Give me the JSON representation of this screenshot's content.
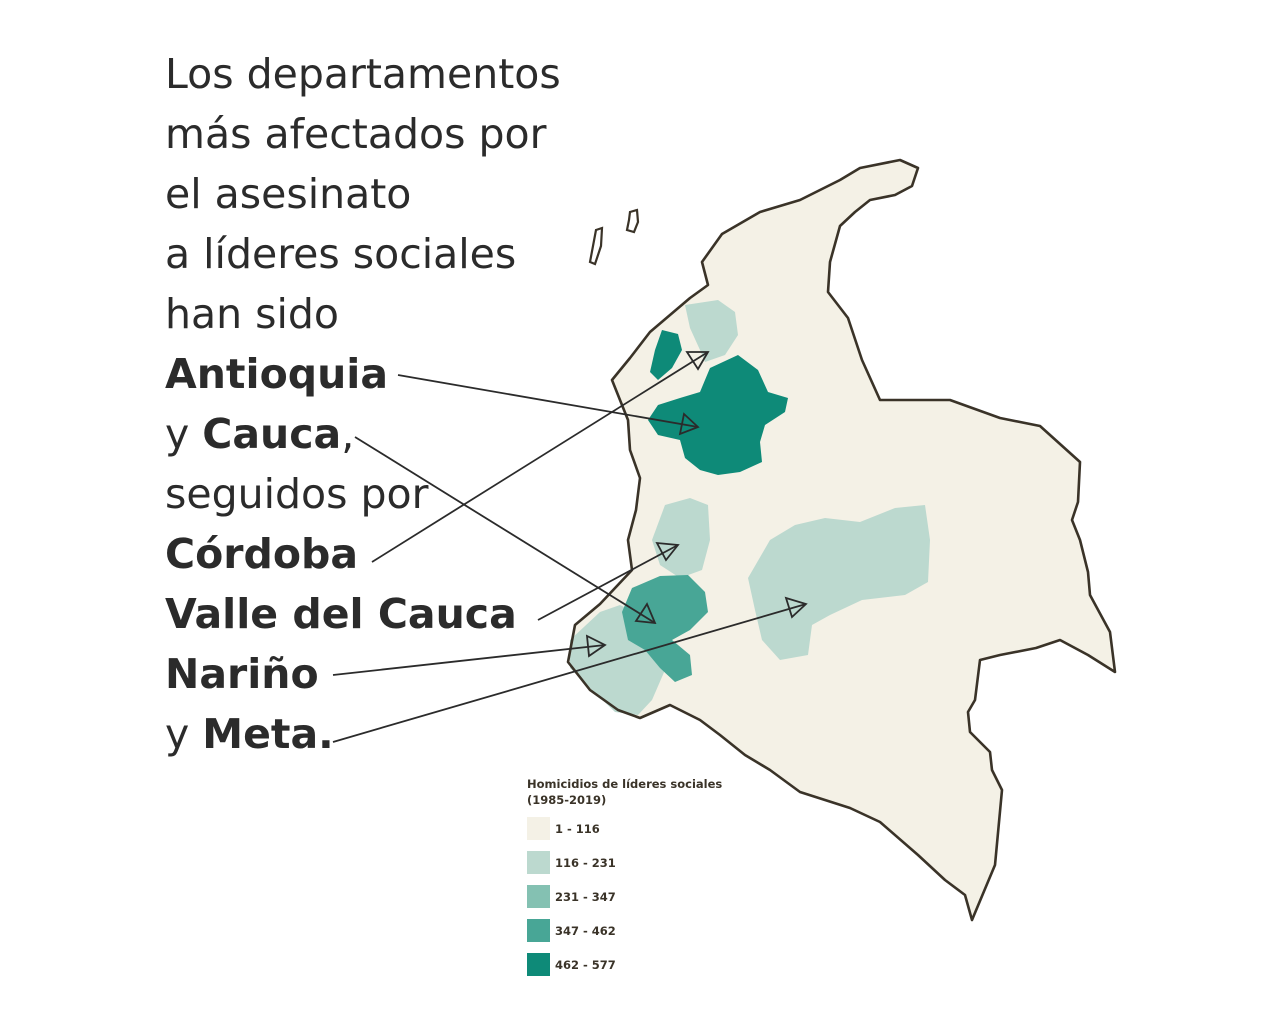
{
  "headline": {
    "line1": "Los departamentos",
    "line2": "más afectados por",
    "line3": "el asesinato",
    "line4": "a líderes sociales",
    "line5": "han sido",
    "antioquia": "Antioquia",
    "y1": "y ",
    "cauca": "Cauca",
    "comma": ",",
    "seguidos": "seguidos por",
    "cordoba": "Córdoba",
    "valle": "Valle del Cauca",
    "narino": "Nariño",
    "y2": "y ",
    "meta": "Meta."
  },
  "legend": {
    "title_line1": "Homicidios de líderes sociales",
    "title_line2": "(1985-2019)",
    "items": [
      {
        "label": "1 - 116",
        "color": "#f4f1e6"
      },
      {
        "label": "116 - 231",
        "color": "#bcd9cf"
      },
      {
        "label": "231 - 347",
        "color": "#84c1b2"
      },
      {
        "label": "347 - 462",
        "color": "#48a696"
      },
      {
        "label": "462 - 577",
        "color": "#0e8a78"
      }
    ]
  },
  "colors": {
    "text": "#2b2b2b",
    "outline": "#3a3328",
    "base": "#f4f1e6",
    "arrow": "#2b2b2b"
  }
}
